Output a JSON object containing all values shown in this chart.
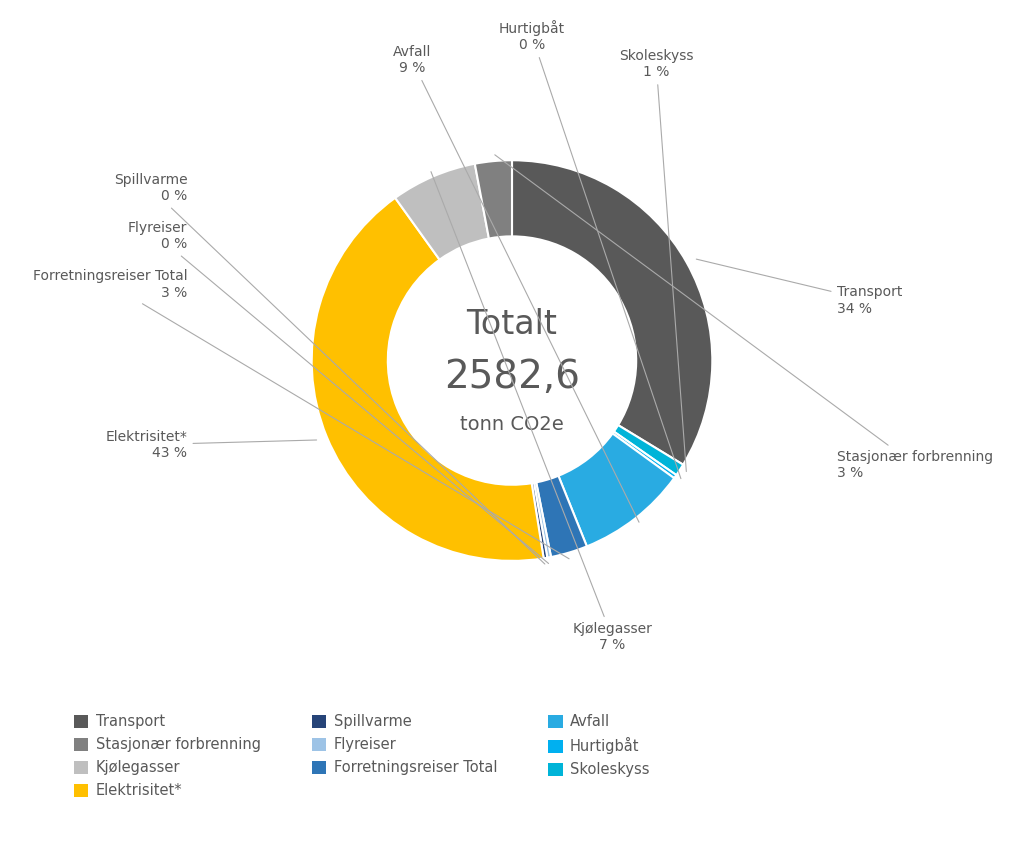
{
  "title_line1": "Totalt",
  "title_line2": "2582,6",
  "title_line3": "tonn CO2e",
  "segments": [
    {
      "label": "Transport",
      "pct": 34,
      "color": "#595959"
    },
    {
      "label": "Skoleskyss",
      "pct": 1,
      "color": "#00B4D8"
    },
    {
      "label": "Hurtigbåt",
      "pct": 0.3,
      "color": "#00B0F0"
    },
    {
      "label": "Avfall",
      "pct": 9,
      "color": "#29ABE2"
    },
    {
      "label": "Forretningsreiser Total",
      "pct": 3,
      "color": "#2E75B6"
    },
    {
      "label": "Flyreiser",
      "pct": 0.3,
      "color": "#9DC3E6"
    },
    {
      "label": "Spillvarme",
      "pct": 0.3,
      "color": "#264478"
    },
    {
      "label": "Elektrisitet*",
      "pct": 43,
      "color": "#FFC000"
    },
    {
      "label": "Kjølegasser",
      "pct": 7,
      "color": "#bfbfbf"
    },
    {
      "label": "Stasjonær forbrenning",
      "pct": 3,
      "color": "#808080"
    }
  ],
  "legend_order": [
    [
      "Transport",
      "#595959"
    ],
    [
      "Stasjonær forbrenning",
      "#808080"
    ],
    [
      "Kjølegasser",
      "#bfbfbf"
    ],
    [
      "Elektrisitet*",
      "#FFC000"
    ],
    [
      "Spillvarme",
      "#264478"
    ],
    [
      "Flyreiser",
      "#9DC3E6"
    ],
    [
      "Forretningsreiser Total",
      "#2E75B6"
    ],
    [
      "Avfall",
      "#29ABE2"
    ],
    [
      "Hurtigbåt",
      "#00B0F0"
    ],
    [
      "Skoleskyss",
      "#00B4D8"
    ]
  ],
  "background_color": "#ffffff",
  "text_color": "#595959",
  "line_color": "#aaaaaa"
}
